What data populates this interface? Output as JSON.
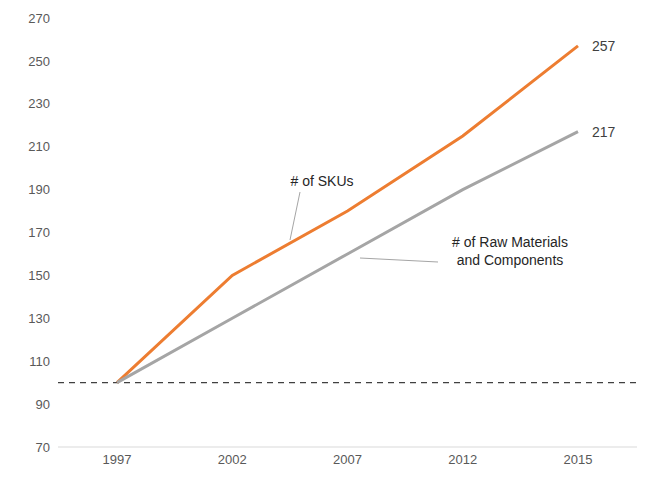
{
  "chart_data": {
    "type": "line",
    "categories": [
      "1997",
      "2002",
      "2007",
      "2012",
      "2015"
    ],
    "series": [
      {
        "name": "# of SKUs",
        "color": "#ed7d31",
        "values": [
          100,
          150,
          180,
          215,
          257
        ],
        "data_labels": true,
        "value_labels": [
          null,
          null,
          null,
          null,
          "257"
        ]
      },
      {
        "name": "# of Raw Materials\nand Components",
        "color": "#a5a5a5",
        "values": [
          100,
          130,
          160,
          190,
          217
        ],
        "data_labels": true,
        "value_labels": [
          null,
          null,
          null,
          null,
          "217"
        ]
      }
    ],
    "baseline": 100,
    "ylim": [
      70,
      270
    ],
    "yticks": [
      70,
      90,
      110,
      130,
      150,
      170,
      190,
      210,
      230,
      250,
      270
    ],
    "grid": false
  }
}
